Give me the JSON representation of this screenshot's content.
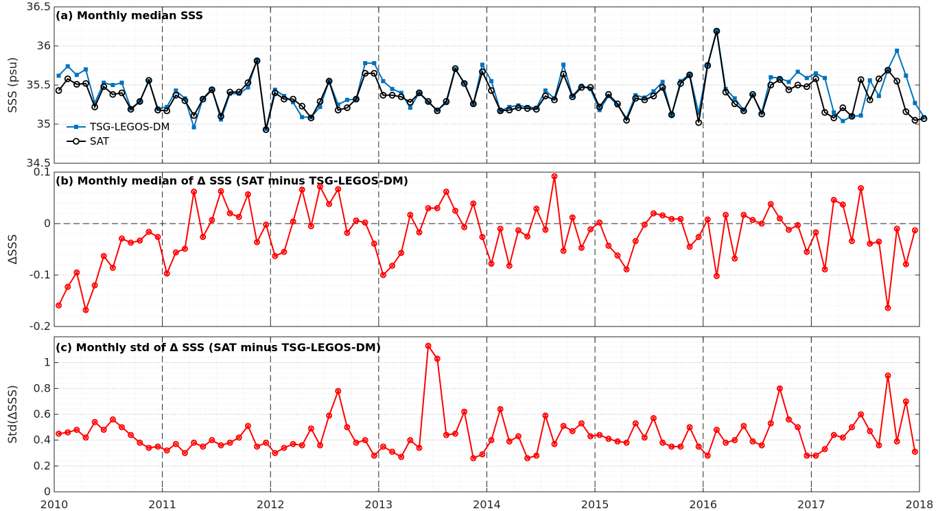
{
  "chart_data": [
    {
      "type": "line",
      "title": "(a) Monthly median SSS",
      "ylabel": "SSS (psu)",
      "xlim": [
        2010,
        2018
      ],
      "ylim": [
        34.5,
        36.5
      ],
      "yticks": [
        "34.5",
        "35",
        "35.5",
        "36",
        "36.5"
      ],
      "xticks": [
        "2010",
        "2011",
        "2012",
        "2013",
        "2014",
        "2015",
        "2016",
        "2017",
        "2018"
      ],
      "grid": true,
      "legend": "bottom-left",
      "series": [
        {
          "name": "TSG-LEGOS-DM",
          "color": "#0072bd",
          "marker": "filled-square",
          "values": [
            35.62,
            35.74,
            35.63,
            35.7,
            35.27,
            35.53,
            35.5,
            35.53,
            35.2,
            35.29,
            35.55,
            35.2,
            35.22,
            35.43,
            35.33,
            34.96,
            35.33,
            35.45,
            35.06,
            35.39,
            35.39,
            35.47,
            35.82,
            34.94,
            35.44,
            35.36,
            35.28,
            35.09,
            35.09,
            35.22,
            35.55,
            35.25,
            35.31,
            35.32,
            35.78,
            35.78,
            35.55,
            35.45,
            35.4,
            35.21,
            35.4,
            35.28,
            35.18,
            35.27,
            35.7,
            35.53,
            35.26,
            35.76,
            35.55,
            35.17,
            35.22,
            35.24,
            35.22,
            35.21,
            35.43,
            35.33,
            35.76,
            35.36,
            35.49,
            35.45,
            35.18,
            35.36,
            35.24,
            35.08,
            35.37,
            35.34,
            35.42,
            35.54,
            35.12,
            35.55,
            35.64,
            35.14,
            35.76,
            36.2,
            35.45,
            35.33,
            35.18,
            35.37,
            35.15,
            35.6,
            35.59,
            35.54,
            35.67,
            35.59,
            35.65,
            35.59,
            35.15,
            35.04,
            35.1,
            35.11,
            35.56,
            35.36,
            35.7,
            35.94,
            35.62,
            35.27,
            35.09
          ]
        },
        {
          "name": "SAT",
          "color": "#000000",
          "marker": "open-circle",
          "values": [
            35.43,
            35.58,
            35.51,
            35.52,
            35.22,
            35.48,
            35.38,
            35.4,
            35.19,
            35.29,
            35.56,
            35.18,
            35.17,
            35.37,
            35.3,
            35.11,
            35.32,
            35.44,
            35.1,
            35.41,
            35.41,
            35.53,
            35.81,
            34.93,
            35.4,
            35.32,
            35.32,
            35.23,
            35.08,
            35.29,
            35.55,
            35.18,
            35.21,
            35.32,
            35.65,
            35.65,
            35.37,
            35.37,
            35.35,
            35.28,
            35.4,
            35.29,
            35.17,
            35.29,
            35.71,
            35.52,
            35.26,
            35.67,
            35.43,
            35.17,
            35.18,
            35.21,
            35.2,
            35.19,
            35.36,
            35.31,
            35.64,
            35.35,
            35.47,
            35.47,
            35.22,
            35.38,
            35.26,
            35.05,
            35.33,
            35.31,
            35.36,
            35.47,
            35.12,
            35.52,
            35.63,
            35.02,
            35.75,
            36.19,
            35.41,
            35.26,
            35.17,
            35.38,
            35.13,
            35.5,
            35.57,
            35.44,
            35.5,
            35.48,
            35.58,
            35.15,
            35.08,
            35.21,
            35.1,
            35.57,
            35.31,
            35.58,
            35.69,
            35.55,
            35.16,
            35.05,
            35.07
          ]
        }
      ]
    },
    {
      "type": "line",
      "title": "(b) Monthly median of Δ SSS (SAT minus TSG-LEGOS-DM)",
      "ylabel": "ΔSSS",
      "xlim": [
        2010,
        2018
      ],
      "ylim": [
        -0.2,
        0.1
      ],
      "yticks": [
        "-0.2",
        "-0.1",
        "0",
        "0.1"
      ],
      "xticks": [
        "2010",
        "2011",
        "2012",
        "2013",
        "2014",
        "2015",
        "2016",
        "2017",
        "2018"
      ],
      "grid": true,
      "zero_line": true,
      "series": [
        {
          "color": "#ff0000",
          "marker": "circle-x",
          "values": [
            -0.159,
            -0.123,
            -0.095,
            -0.168,
            -0.12,
            -0.063,
            -0.086,
            -0.029,
            -0.037,
            -0.033,
            -0.016,
            -0.026,
            -0.097,
            -0.056,
            -0.049,
            0.062,
            -0.026,
            0.007,
            0.063,
            0.02,
            0.013,
            0.057,
            -0.036,
            -0.002,
            -0.063,
            -0.055,
            0.004,
            0.066,
            -0.005,
            0.072,
            0.038,
            0.067,
            -0.018,
            0.006,
            0.002,
            -0.039,
            -0.1,
            -0.082,
            -0.057,
            0.017,
            -0.017,
            0.03,
            0.03,
            0.062,
            0.025,
            -0.007,
            0.039,
            -0.026,
            -0.078,
            -0.01,
            -0.082,
            -0.013,
            -0.025,
            0.029,
            -0.012,
            0.092,
            -0.053,
            0.012,
            -0.047,
            -0.011,
            0.002,
            -0.043,
            -0.062,
            -0.089,
            -0.034,
            -0.002,
            0.02,
            0.016,
            0.009,
            0.009,
            -0.045,
            -0.026,
            0.008,
            -0.102,
            0.017,
            -0.068,
            0.017,
            0.007,
            0.0,
            0.038,
            0.01,
            -0.012,
            -0.003,
            -0.055,
            -0.017,
            -0.089,
            0.046,
            0.037,
            -0.034,
            0.069,
            -0.039,
            -0.035,
            -0.164,
            -0.01,
            -0.079,
            -0.013
          ]
        }
      ]
    },
    {
      "type": "line",
      "title": "(c) Monthly std of Δ SSS (SAT minus TSG-LEGOS-DM)",
      "ylabel": "Std(ΔSSS)",
      "xlim": [
        2010,
        2018
      ],
      "ylim": [
        0,
        1.2
      ],
      "yticks": [
        "0",
        "0.2",
        "0.4",
        "0.6",
        "0.8",
        "1"
      ],
      "xticks": [
        "2010",
        "2011",
        "2012",
        "2013",
        "2014",
        "2015",
        "2016",
        "2017",
        "2018"
      ],
      "grid": true,
      "series": [
        {
          "color": "#ff0000",
          "marker": "circle-x",
          "values": [
            0.45,
            0.46,
            0.48,
            0.42,
            0.54,
            0.48,
            0.56,
            0.5,
            0.44,
            0.38,
            0.34,
            0.35,
            0.32,
            0.37,
            0.3,
            0.38,
            0.35,
            0.4,
            0.36,
            0.38,
            0.42,
            0.51,
            0.35,
            0.38,
            0.3,
            0.34,
            0.37,
            0.36,
            0.49,
            0.36,
            0.59,
            0.78,
            0.5,
            0.38,
            0.4,
            0.28,
            0.35,
            0.31,
            0.27,
            0.4,
            0.34,
            1.13,
            1.03,
            0.44,
            0.45,
            0.62,
            0.26,
            0.29,
            0.4,
            0.64,
            0.39,
            0.43,
            0.26,
            0.28,
            0.59,
            0.37,
            0.51,
            0.47,
            0.53,
            0.43,
            0.44,
            0.41,
            0.39,
            0.38,
            0.53,
            0.42,
            0.57,
            0.38,
            0.35,
            0.35,
            0.5,
            0.35,
            0.28,
            0.48,
            0.38,
            0.4,
            0.51,
            0.39,
            0.36,
            0.53,
            0.8,
            0.56,
            0.5,
            0.28,
            0.28,
            0.33,
            0.44,
            0.42,
            0.5,
            0.6,
            0.47,
            0.36,
            0.9,
            0.39,
            0.7,
            0.31
          ]
        }
      ]
    }
  ]
}
